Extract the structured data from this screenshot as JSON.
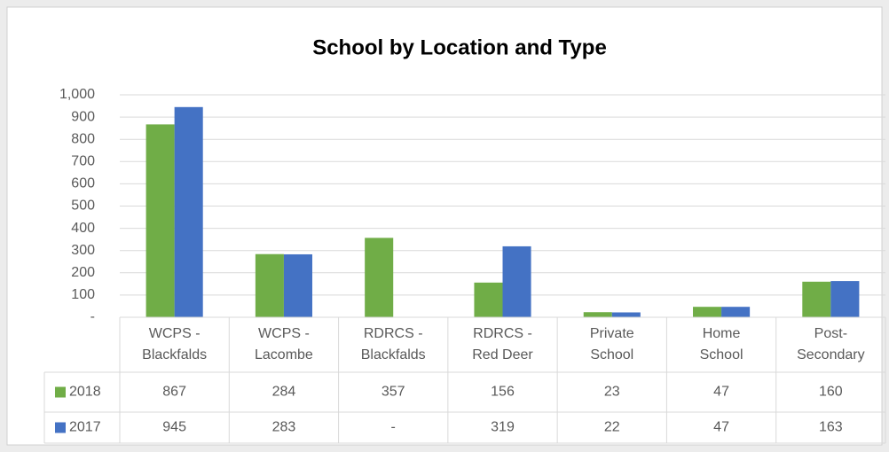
{
  "chart_data": {
    "type": "bar",
    "title": "School by Location and Type",
    "categories": [
      [
        "WCPS -",
        "Blackfalds"
      ],
      [
        "WCPS -",
        "Lacombe"
      ],
      [
        "RDRCS -",
        "Blackfalds"
      ],
      [
        "RDRCS -",
        "Red Deer"
      ],
      [
        "Private",
        "School"
      ],
      [
        "Home",
        "School"
      ],
      [
        "Post-",
        "Secondary"
      ]
    ],
    "series": [
      {
        "name": "2018",
        "color": "#70ad47",
        "values": [
          867,
          284,
          357,
          156,
          23,
          47,
          160
        ]
      },
      {
        "name": "2017",
        "color": "#4472c4",
        "values": [
          945,
          283,
          null,
          319,
          22,
          47,
          163
        ],
        "value_labels": [
          "945",
          "283",
          "-",
          "319",
          "22",
          "47",
          "163"
        ]
      }
    ],
    "ylim": [
      0,
      1000
    ],
    "yticks": [
      {
        "value": 0,
        "label": "-"
      },
      100,
      200,
      300,
      400,
      500,
      600,
      700,
      800,
      900,
      {
        "value": 1000,
        "label": "1,000"
      }
    ],
    "grid": true,
    "data_table": true
  }
}
